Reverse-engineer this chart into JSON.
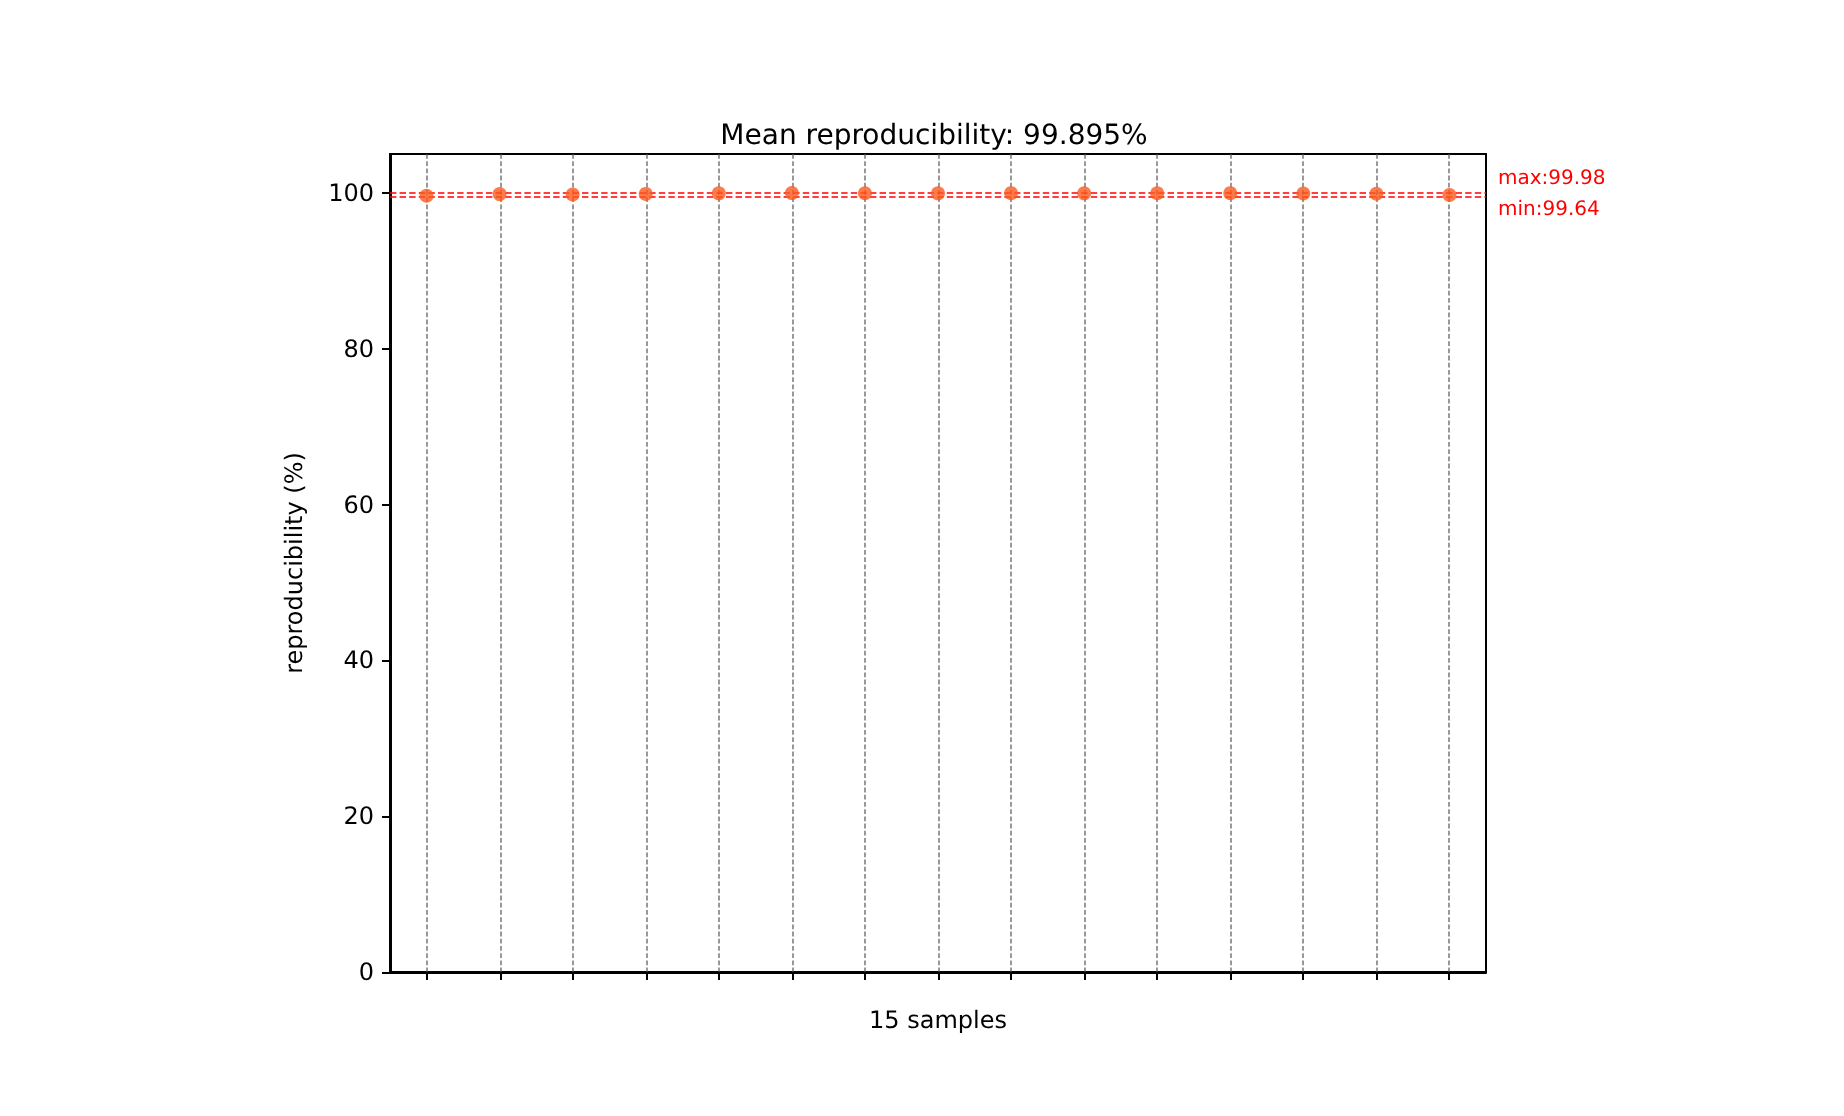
{
  "chart_data": {
    "type": "scatter",
    "title": "Mean reproducibility: 99.895%",
    "xlabel": "15 samples",
    "ylabel": "reproducibility (%)",
    "categories": [
      null,
      null,
      null,
      null,
      null,
      null,
      null,
      null,
      null,
      null,
      null,
      null,
      null,
      null,
      null
    ],
    "series": [
      {
        "color": "#fc5a1e",
        "values": [
          99.64,
          99.85,
          99.8,
          99.88,
          99.95,
          99.98,
          99.96,
          99.95,
          99.97,
          99.95,
          99.96,
          99.97,
          99.93,
          99.9,
          99.74
        ]
      }
    ],
    "ylim": [
      0,
      105
    ],
    "yticks": [
      0,
      20,
      40,
      60,
      80,
      100
    ],
    "ref_lines": [
      {
        "axis": "y",
        "value": 99.98,
        "label": "max:99.98",
        "color": "#ff0000",
        "line_style": "dashed"
      },
      {
        "axis": "y",
        "value": 99.64,
        "label": "min:99.64",
        "color": "#ff0000",
        "line_style": "dashed"
      }
    ],
    "grid": "x",
    "marker": "circle",
    "tick_labels": "y"
  }
}
